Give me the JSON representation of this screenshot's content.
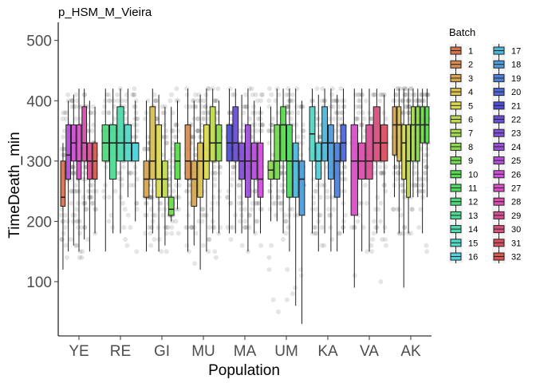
{
  "chart_data": {
    "type": "boxplot",
    "title": "p_HSM_M_Vieira",
    "xlabel": "Population",
    "ylabel": "TimeDeath_min",
    "ylim": [
      10,
      530
    ],
    "yticks": [
      100,
      200,
      300,
      400,
      500
    ],
    "categories": [
      "YE",
      "RE",
      "GI",
      "MU",
      "MA",
      "UM",
      "KA",
      "VA",
      "AK"
    ],
    "legend": {
      "title": "Batch",
      "placement": "right",
      "labels": [
        "1",
        "2",
        "3",
        "4",
        "5",
        "6",
        "7",
        "8",
        "9",
        "10",
        "11",
        "12",
        "13",
        "14",
        "15",
        "16",
        "17",
        "18",
        "19",
        "20",
        "21",
        "22",
        "23",
        "24",
        "25",
        "26",
        "27",
        "28",
        "29",
        "30",
        "31",
        "32"
      ]
    },
    "groups": [
      {
        "population": "YE",
        "boxes": [
          {
            "batch": 1,
            "min": 120,
            "q1": 225,
            "median": 240,
            "q3": 300,
            "max": 330
          },
          {
            "batch": 25,
            "min": 150,
            "q1": 270,
            "median": 310,
            "q3": 360,
            "max": 400
          },
          {
            "batch": 26,
            "min": 160,
            "q1": 300,
            "median": 330,
            "q3": 360,
            "max": 410
          },
          {
            "batch": 27,
            "min": 150,
            "q1": 270,
            "median": 300,
            "q3": 360,
            "max": 420
          },
          {
            "batch": 28,
            "min": 170,
            "q1": 300,
            "median": 330,
            "q3": 390,
            "max": 420
          },
          {
            "batch": 29,
            "min": 150,
            "q1": 270,
            "median": 300,
            "q3": 330,
            "max": 400
          },
          {
            "batch": 32,
            "min": 180,
            "q1": 270,
            "median": 300,
            "q3": 330,
            "max": 390
          }
        ]
      },
      {
        "population": "RE",
        "boxes": [
          {
            "batch": 12,
            "min": 150,
            "q1": 300,
            "median": 330,
            "q3": 360,
            "max": 420
          },
          {
            "batch": 13,
            "min": 180,
            "q1": 270,
            "median": 330,
            "q3": 360,
            "max": 420
          },
          {
            "batch": 14,
            "min": 180,
            "q1": 300,
            "median": 330,
            "q3": 390,
            "max": 420
          },
          {
            "batch": 15,
            "min": 240,
            "q1": 300,
            "median": 330,
            "q3": 360,
            "max": 420
          },
          {
            "batch": 16,
            "min": 200,
            "q1": 300,
            "median": 330,
            "q3": 330,
            "max": 400
          }
        ]
      },
      {
        "population": "GI",
        "boxes": [
          {
            "batch": 3,
            "min": 150,
            "q1": 240,
            "median": 270,
            "q3": 300,
            "max": 400
          },
          {
            "batch": 4,
            "min": 180,
            "q1": 270,
            "median": 300,
            "q3": 390,
            "max": 420
          },
          {
            "batch": 5,
            "min": 150,
            "q1": 240,
            "median": 270,
            "q3": 360,
            "max": 410
          },
          {
            "batch": 6,
            "min": 160,
            "q1": 240,
            "median": 270,
            "q3": 300,
            "max": 390
          },
          {
            "batch": 9,
            "min": 200,
            "q1": 210,
            "median": 220,
            "q3": 240,
            "max": 390
          },
          {
            "batch": 10,
            "min": 220,
            "q1": 270,
            "median": 300,
            "q3": 330,
            "max": 400
          }
        ]
      },
      {
        "population": "MU",
        "boxes": [
          {
            "batch": 2,
            "min": 150,
            "q1": 270,
            "median": 300,
            "q3": 360,
            "max": 420
          },
          {
            "batch": 3,
            "min": 160,
            "q1": 225,
            "median": 270,
            "q3": 300,
            "max": 400
          },
          {
            "batch": 4,
            "min": 120,
            "q1": 240,
            "median": 300,
            "q3": 330,
            "max": 410
          },
          {
            "batch": 5,
            "min": 150,
            "q1": 270,
            "median": 300,
            "q3": 360,
            "max": 420
          },
          {
            "batch": 6,
            "min": 180,
            "q1": 300,
            "median": 330,
            "q3": 390,
            "max": 420
          },
          {
            "batch": 8,
            "min": 180,
            "q1": 300,
            "median": 330,
            "q3": 360,
            "max": 400
          }
        ]
      },
      {
        "population": "MA",
        "boxes": [
          {
            "batch": 21,
            "min": 180,
            "q1": 300,
            "median": 330,
            "q3": 360,
            "max": 420
          },
          {
            "batch": 22,
            "min": 180,
            "q1": 300,
            "median": 330,
            "q3": 390,
            "max": 420
          },
          {
            "batch": 23,
            "min": 180,
            "q1": 270,
            "median": 300,
            "q3": 330,
            "max": 410
          },
          {
            "batch": 24,
            "min": 150,
            "q1": 240,
            "median": 300,
            "q3": 360,
            "max": 420
          },
          {
            "batch": 25,
            "min": 180,
            "q1": 270,
            "median": 300,
            "q3": 330,
            "max": 400
          },
          {
            "batch": 26,
            "min": 180,
            "q1": 240,
            "median": 270,
            "q3": 330,
            "max": 390
          }
        ]
      },
      {
        "population": "UM",
        "boxes": [
          {
            "batch": 8,
            "min": 200,
            "q1": 270,
            "median": 285,
            "q3": 300,
            "max": 390
          },
          {
            "batch": 9,
            "min": 200,
            "q1": 270,
            "median": 300,
            "q3": 360,
            "max": 420
          },
          {
            "batch": 10,
            "min": 180,
            "q1": 300,
            "median": 360,
            "q3": 390,
            "max": 420
          },
          {
            "batch": 11,
            "min": 150,
            "q1": 240,
            "median": 300,
            "q3": 360,
            "max": 420
          },
          {
            "batch": 17,
            "min": 60,
            "q1": 240,
            "median": 300,
            "q3": 330,
            "max": 420
          },
          {
            "batch": 18,
            "min": 30,
            "q1": 210,
            "median": 270,
            "q3": 300,
            "max": 400
          }
        ]
      },
      {
        "population": "KA",
        "boxes": [
          {
            "batch": 15,
            "min": 180,
            "q1": 300,
            "median": 345,
            "q3": 390,
            "max": 420
          },
          {
            "batch": 16,
            "min": 150,
            "q1": 270,
            "median": 300,
            "q3": 330,
            "max": 410
          },
          {
            "batch": 17,
            "min": 180,
            "q1": 300,
            "median": 330,
            "q3": 390,
            "max": 420
          },
          {
            "batch": 18,
            "min": 150,
            "q1": 270,
            "median": 330,
            "q3": 360,
            "max": 420
          },
          {
            "batch": 19,
            "min": 150,
            "q1": 240,
            "median": 300,
            "q3": 330,
            "max": 410
          },
          {
            "batch": 20,
            "min": 180,
            "q1": 300,
            "median": 330,
            "q3": 360,
            "max": 420
          }
        ]
      },
      {
        "population": "VA",
        "boxes": [
          {
            "batch": 27,
            "min": 90,
            "q1": 210,
            "median": 300,
            "q3": 360,
            "max": 420
          },
          {
            "batch": 28,
            "min": 150,
            "q1": 270,
            "median": 300,
            "q3": 330,
            "max": 420
          },
          {
            "batch": 29,
            "min": 150,
            "q1": 270,
            "median": 300,
            "q3": 360,
            "max": 420
          },
          {
            "batch": 30,
            "min": 180,
            "q1": 300,
            "median": 330,
            "q3": 390,
            "max": 420
          },
          {
            "batch": 31,
            "min": 180,
            "q1": 300,
            "median": 330,
            "q3": 360,
            "max": 410
          }
        ]
      },
      {
        "population": "AK",
        "boxes": [
          {
            "batch": 3,
            "min": 240,
            "q1": 310,
            "median": 360,
            "q3": 390,
            "max": 420
          },
          {
            "batch": 4,
            "min": 180,
            "q1": 300,
            "median": 360,
            "q3": 390,
            "max": 420
          },
          {
            "batch": 5,
            "min": 90,
            "q1": 270,
            "median": 330,
            "q3": 360,
            "max": 420
          },
          {
            "batch": 6,
            "min": 180,
            "q1": 240,
            "median": 300,
            "q3": 360,
            "max": 420
          },
          {
            "batch": 7,
            "min": 240,
            "q1": 300,
            "median": 360,
            "q3": 390,
            "max": 420
          },
          {
            "batch": 8,
            "min": 240,
            "q1": 300,
            "median": 360,
            "q3": 390,
            "max": 420
          },
          {
            "batch": 9,
            "min": 180,
            "q1": 330,
            "median": 360,
            "q3": 390,
            "max": 420
          },
          {
            "batch": 10,
            "min": 240,
            "q1": 330,
            "median": 360,
            "q3": 390,
            "max": 420
          }
        ]
      }
    ],
    "points": {
      "opacity": 0.1,
      "color": "#000000"
    }
  }
}
